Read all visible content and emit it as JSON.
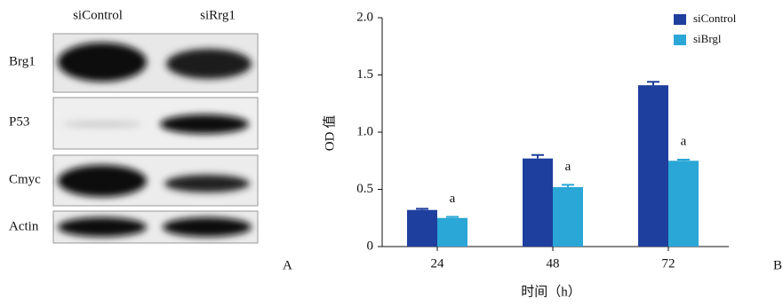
{
  "blot": {
    "columns": [
      "siControl",
      "siRrg1"
    ],
    "rows": [
      "Brg1",
      "P53",
      "Cmyc",
      "Actin"
    ],
    "panel_label": "A"
  },
  "chart_data": {
    "type": "bar",
    "panel_label": "B",
    "xlabel": "时间（h）",
    "ylabel": "OD 值",
    "categories": [
      "24",
      "48",
      "72"
    ],
    "series": [
      {
        "name": "siControl",
        "color": "#1f3f9e",
        "values": [
          0.32,
          0.77,
          1.41
        ],
        "errors": [
          0.01,
          0.03,
          0.03
        ]
      },
      {
        "name": "siBrgl",
        "color": "#2aa7d6",
        "values": [
          0.25,
          0.52,
          0.75
        ],
        "errors": [
          0.01,
          0.02,
          0.01
        ],
        "significance_labels": [
          "a",
          "a",
          "a"
        ]
      }
    ],
    "ylim": [
      0,
      2
    ],
    "yticks": [
      0,
      0.5,
      {
        "value": 1,
        "label": "1.0"
      },
      1.5,
      {
        "value": 2,
        "label": "2.0"
      }
    ],
    "legend": "upper right"
  }
}
